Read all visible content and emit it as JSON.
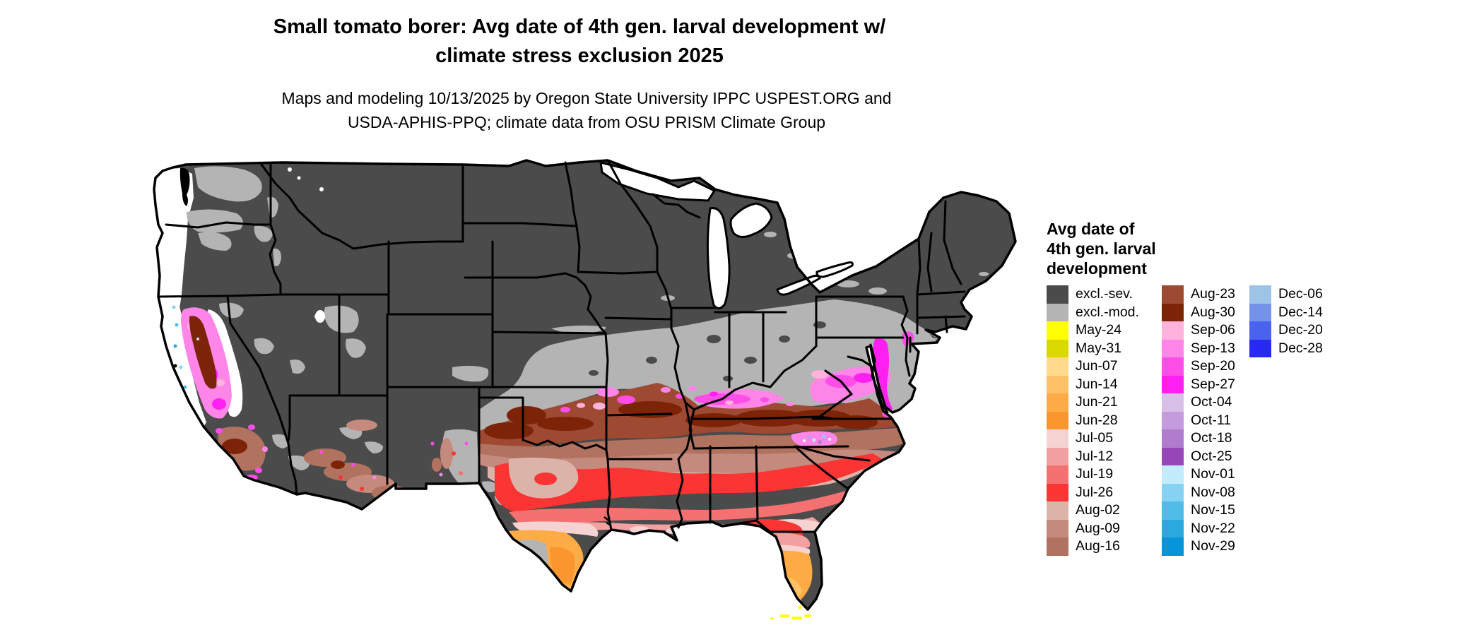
{
  "header": {
    "title_line1": "Small tomato borer: Avg date of 4th gen. larval development w/",
    "title_line2": "climate stress exclusion 2025",
    "subtitle_line1": "Maps and modeling 10/13/2025 by Oregon State University IPPC USPEST.ORG and",
    "subtitle_line2": "USDA-APHIS-PPQ; climate data from OSU PRISM Climate Group"
  },
  "map": {
    "area": "Contiguous United States",
    "kind": "raster choropleth of average date of 4th generation larval development"
  },
  "legend": {
    "title_lines": [
      "Avg date of",
      "4th gen. larval",
      "development"
    ],
    "columns": [
      {
        "entries": [
          {
            "label": "excl.-sev.",
            "color": "#4B4B4B"
          },
          {
            "label": "excl.-mod.",
            "color": "#B4B4B4"
          },
          {
            "label": "May-24",
            "color": "#FFFF00"
          },
          {
            "label": "May-31",
            "color": "#D9D900"
          },
          {
            "label": "Jun-07",
            "color": "#FFD98C"
          },
          {
            "label": "Jun-14",
            "color": "#FFC166"
          },
          {
            "label": "Jun-21",
            "color": "#FFAC47"
          },
          {
            "label": "Jun-28",
            "color": "#FB962F"
          },
          {
            "label": "Jul-05",
            "color": "#F6D3D3"
          },
          {
            "label": "Jul-12",
            "color": "#F2A0A0"
          },
          {
            "label": "Jul-19",
            "color": "#F57171"
          },
          {
            "label": "Jul-26",
            "color": "#FB3434"
          },
          {
            "label": "Aug-02",
            "color": "#DCB3A8"
          },
          {
            "label": "Aug-09",
            "color": "#C48A7E"
          },
          {
            "label": "Aug-16",
            "color": "#B17260"
          }
        ]
      },
      {
        "entries": [
          {
            "label": "Aug-23",
            "color": "#9E4A33"
          },
          {
            "label": "Aug-30",
            "color": "#7D2408"
          },
          {
            "label": "Sep-06",
            "color": "#FFB3DC"
          },
          {
            "label": "Sep-13",
            "color": "#FF85E8"
          },
          {
            "label": "Sep-20",
            "color": "#FF4DE8"
          },
          {
            "label": "Sep-27",
            "color": "#FF1FF0"
          },
          {
            "label": "Oct-04",
            "color": "#D8BFE8"
          },
          {
            "label": "Oct-11",
            "color": "#C49BDC"
          },
          {
            "label": "Oct-18",
            "color": "#B07CCE"
          },
          {
            "label": "Oct-25",
            "color": "#9747B8"
          },
          {
            "label": "Nov-01",
            "color": "#C2EBFB"
          },
          {
            "label": "Nov-08",
            "color": "#85D2F2"
          },
          {
            "label": "Nov-15",
            "color": "#52BCE8"
          },
          {
            "label": "Nov-22",
            "color": "#2BA8DE"
          },
          {
            "label": "Nov-29",
            "color": "#0595D8"
          }
        ]
      },
      {
        "entries": [
          {
            "label": "Dec-06",
            "color": "#9DC3E6"
          },
          {
            "label": "Dec-14",
            "color": "#7492EA"
          },
          {
            "label": "Dec-20",
            "color": "#4A63EE"
          },
          {
            "label": "Dec-28",
            "color": "#2929F5"
          }
        ]
      }
    ]
  }
}
